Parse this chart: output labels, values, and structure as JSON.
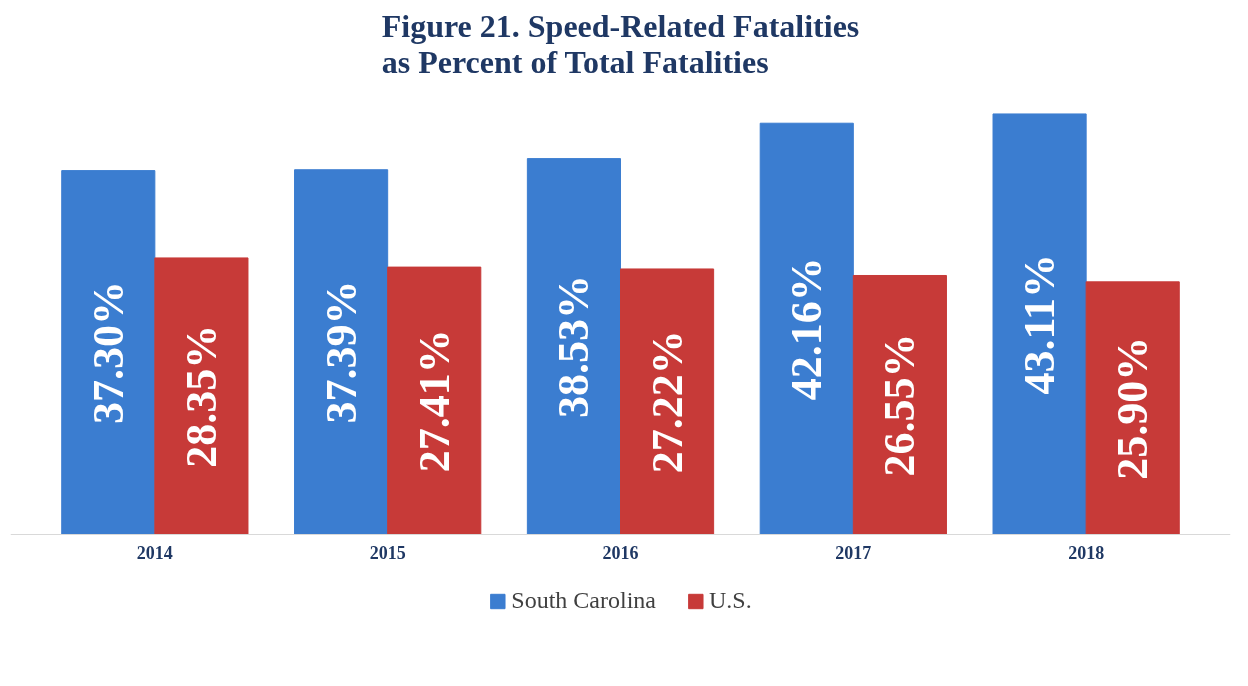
{
  "chart_data": {
    "type": "bar",
    "title": "Figure 21. Speed-Related Fatalities\nas Percent of Total Fatalities",
    "categories": [
      "2014",
      "2015",
      "2016",
      "2017",
      "2018"
    ],
    "series": [
      {
        "name": "South Carolina",
        "color": "#3b7dd0",
        "values": [
          37.3,
          37.39,
          38.53,
          42.16,
          43.11
        ],
        "value_labels": [
          "37.30%",
          "37.39%",
          "38.53%",
          "42.16%",
          "43.11%"
        ]
      },
      {
        "name": "U.S.",
        "color": "#c73a38",
        "values": [
          28.35,
          27.41,
          27.22,
          26.55,
          25.9
        ],
        "value_labels": [
          "28.35%",
          "27.41%",
          "27.22%",
          "26.55%",
          "25.90%"
        ]
      }
    ],
    "legend": "bottom",
    "grid": false
  }
}
